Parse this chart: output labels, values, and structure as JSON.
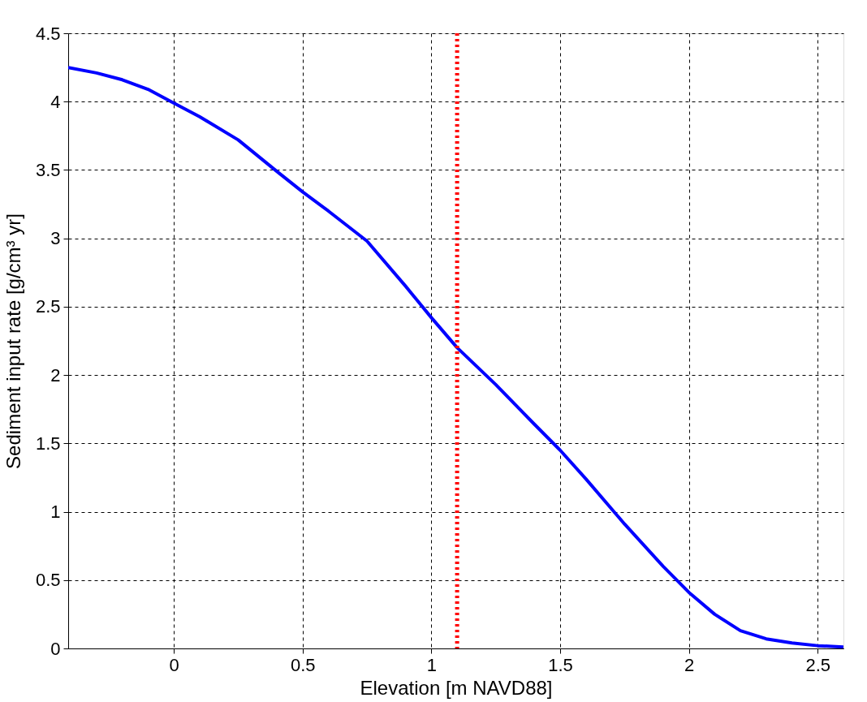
{
  "chart_data": {
    "type": "line",
    "xlabel": "Elevation [m NAVD88]",
    "ylabel": "Sediment input rate [g/cm³ yr]",
    "x": [
      -0.41,
      -0.3,
      -0.2,
      -0.1,
      0,
      0.1,
      0.25,
      0.4,
      0.5,
      0.6,
      0.75,
      0.9,
      1.0,
      1.1,
      1.25,
      1.4,
      1.5,
      1.6,
      1.75,
      1.9,
      2.0,
      2.1,
      2.2,
      2.3,
      2.4,
      2.5,
      2.6
    ],
    "series": [
      {
        "color": "#0000ff",
        "values": [
          4.25,
          4.21,
          4.16,
          4.09,
          3.99,
          3.89,
          3.72,
          3.49,
          3.34,
          3.2,
          2.98,
          2.65,
          2.42,
          2.2,
          1.93,
          1.64,
          1.45,
          1.24,
          0.91,
          0.6,
          0.41,
          0.25,
          0.13,
          0.07,
          0.04,
          0.02,
          0.01
        ]
      }
    ],
    "xlim": [
      -0.41,
      2.6
    ],
    "xticks": [
      0,
      0.5,
      1,
      1.5,
      2,
      2.5
    ],
    "ylim": [
      0,
      4.5
    ],
    "yticks": [
      0,
      0.5,
      1,
      1.5,
      2,
      2.5,
      3,
      3.5,
      4,
      4.5
    ],
    "grid": true,
    "line_style": "solid",
    "marker": "none",
    "ref_lines": [
      {
        "axis": "x",
        "value": 1.1,
        "color": "#ff0000",
        "line_style": "dotted"
      }
    ]
  }
}
